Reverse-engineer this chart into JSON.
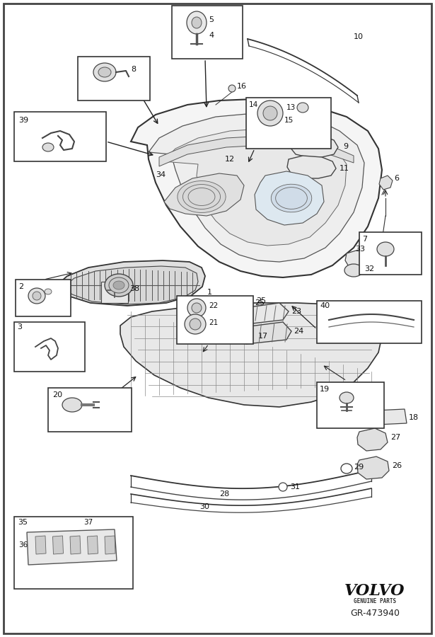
{
  "bg_color": "#ffffff",
  "border_color": "#222222",
  "lc": "#333333",
  "volvo_text": "VOLVO",
  "genuine_parts_text": "GENUINE PARTS",
  "part_number": "GR-473940",
  "fig_width": 6.15,
  "fig_height": 9.0,
  "dpi": 100
}
